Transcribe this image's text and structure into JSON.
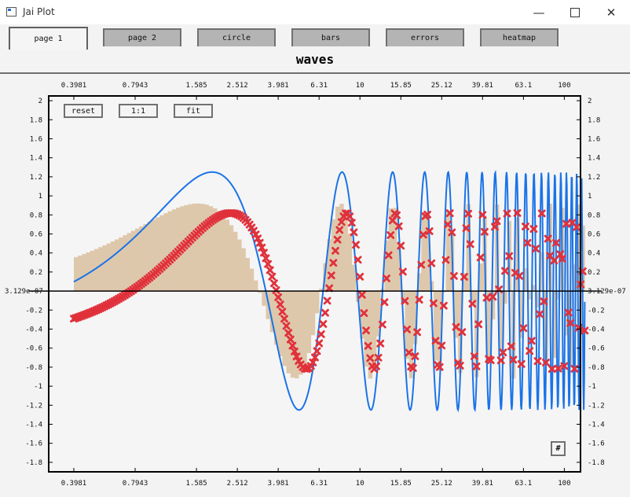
{
  "window": {
    "title": "Jai Plot",
    "minimize_icon": "minimize-icon",
    "maximize_icon": "maximize-icon",
    "close_icon": "close-icon"
  },
  "tabs": [
    {
      "label": "page 1",
      "active": true
    },
    {
      "label": "page 2",
      "active": false
    },
    {
      "label": "circle",
      "active": false
    },
    {
      "label": "bars",
      "active": false
    },
    {
      "label": "errors",
      "active": false
    },
    {
      "label": "heatmap",
      "active": false
    }
  ],
  "controls": {
    "reset": "reset",
    "one_to_one": "1:1",
    "fit": "fit",
    "grid_toggle": "#"
  },
  "colors": {
    "line": "#1a73e8",
    "bars": "#dec8ac",
    "markers": "#e0313b",
    "axis": "#000000",
    "plot_bg": "#f5f5f5"
  },
  "chart_data": {
    "type": "line",
    "title": "waves",
    "x_scale": "log",
    "xlim": [
      0.3,
      120
    ],
    "ylim": [
      -1.9,
      2.05
    ],
    "x_ticks": [
      "0.3981",
      "0.7943",
      "1.585",
      "2.512",
      "3.981",
      "6.31",
      "10",
      "15.85",
      "25.12",
      "39.81",
      "63.1",
      "100"
    ],
    "x_tick_values": [
      0.3981,
      0.7943,
      1.585,
      2.512,
      3.981,
      6.31,
      10,
      15.85,
      25.12,
      39.81,
      63.1,
      100
    ],
    "y_ticks": [
      "2",
      "1.8",
      "1.6",
      "1.4",
      "1.2",
      "1",
      "0.8",
      "0.6",
      "0.4",
      "0.2",
      "3.129e-07",
      "-0.2",
      "-0.4",
      "-0.6",
      "-0.8",
      "-1",
      "-1.2",
      "-1.4",
      "-1.6",
      "-1.8"
    ],
    "y_tick_values": [
      2,
      1.8,
      1.6,
      1.4,
      1.2,
      1,
      0.8,
      0.6,
      0.4,
      0.2,
      0,
      -0.2,
      -0.4,
      -0.6,
      -0.8,
      -1,
      -1.2,
      -1.4,
      -1.6,
      -1.8
    ],
    "zero_line": 0,
    "grid": false,
    "series": [
      {
        "kind": "line",
        "x_range": [
          0.4,
          100
        ],
        "x_log_start": -0.4,
        "x_log_step": 0.0025,
        "x_count": 1001,
        "function": "1.25*sin(x - 0.32)"
      },
      {
        "kind": "step",
        "x_range": [
          0.4,
          100
        ],
        "x_log_start": -0.4,
        "x_log_step": 0.0025,
        "sample_every": 8,
        "function": "0.92*sin(x)"
      },
      {
        "kind": "scatter",
        "marker": "x",
        "x_range": [
          0.4,
          100
        ],
        "x_log_start": -0.4,
        "x_log_step": 0.0025,
        "sample_every": 4,
        "function": "0.82*sin(x - 0.76)"
      }
    ]
  }
}
